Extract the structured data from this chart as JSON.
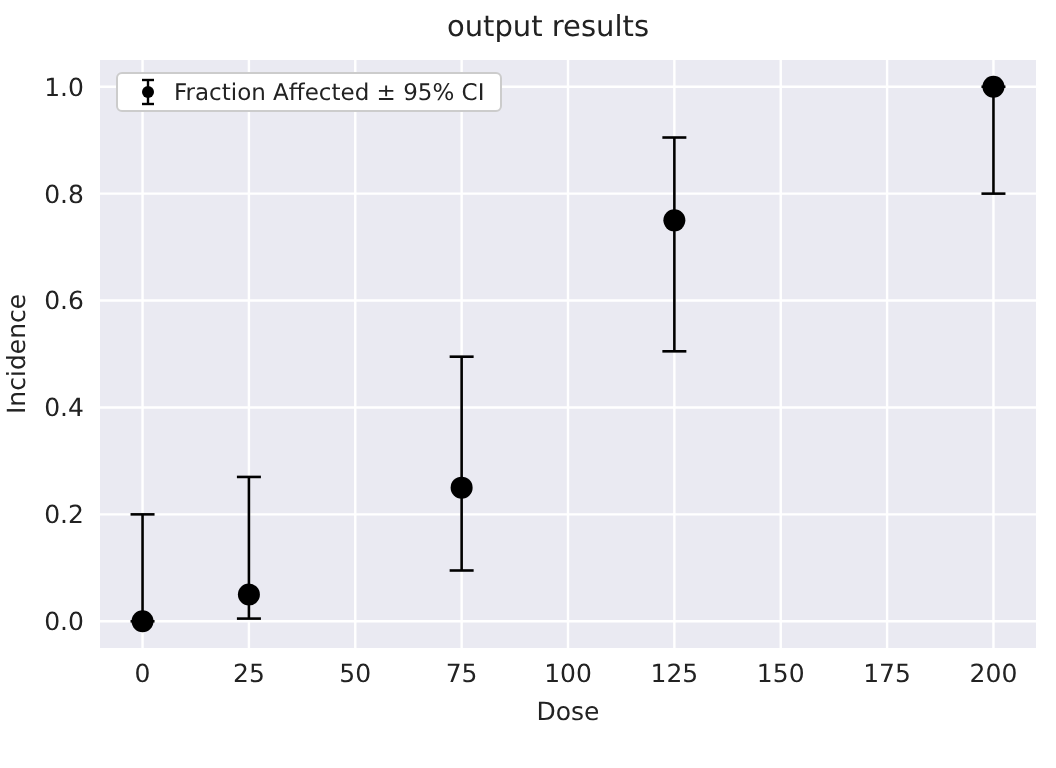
{
  "chart_data": {
    "type": "scatter",
    "title": "output results",
    "xlabel": "Dose",
    "ylabel": "Incidence",
    "x": [
      0,
      25,
      75,
      125,
      200
    ],
    "series": [
      {
        "name": "Fraction Affected ± 95% CI",
        "color": "#000000",
        "values": [
          0,
          0.05,
          0.25,
          0.75,
          1.0
        ],
        "errors": [
          [
            0,
            0.2
          ],
          [
            0.005,
            0.27
          ],
          [
            0.095,
            0.495
          ],
          [
            0.505,
            0.905
          ],
          [
            0.8,
            1.0
          ]
        ]
      }
    ],
    "xlim": [
      -10,
      210
    ],
    "xticks": [
      0,
      25,
      50,
      75,
      100,
      125,
      150,
      175,
      200
    ],
    "ylim": [
      -0.05,
      1.05
    ],
    "yticks": [
      {
        "value": 0,
        "label": "0.0"
      },
      {
        "value": 0.2,
        "label": "0.2"
      },
      {
        "value": 0.4,
        "label": "0.4"
      },
      {
        "value": 0.6,
        "label": "0.6"
      },
      {
        "value": 0.8,
        "label": "0.8"
      },
      {
        "value": 1,
        "label": "1.0"
      }
    ],
    "grid": true,
    "legend": "top left",
    "marker": "circle"
  }
}
